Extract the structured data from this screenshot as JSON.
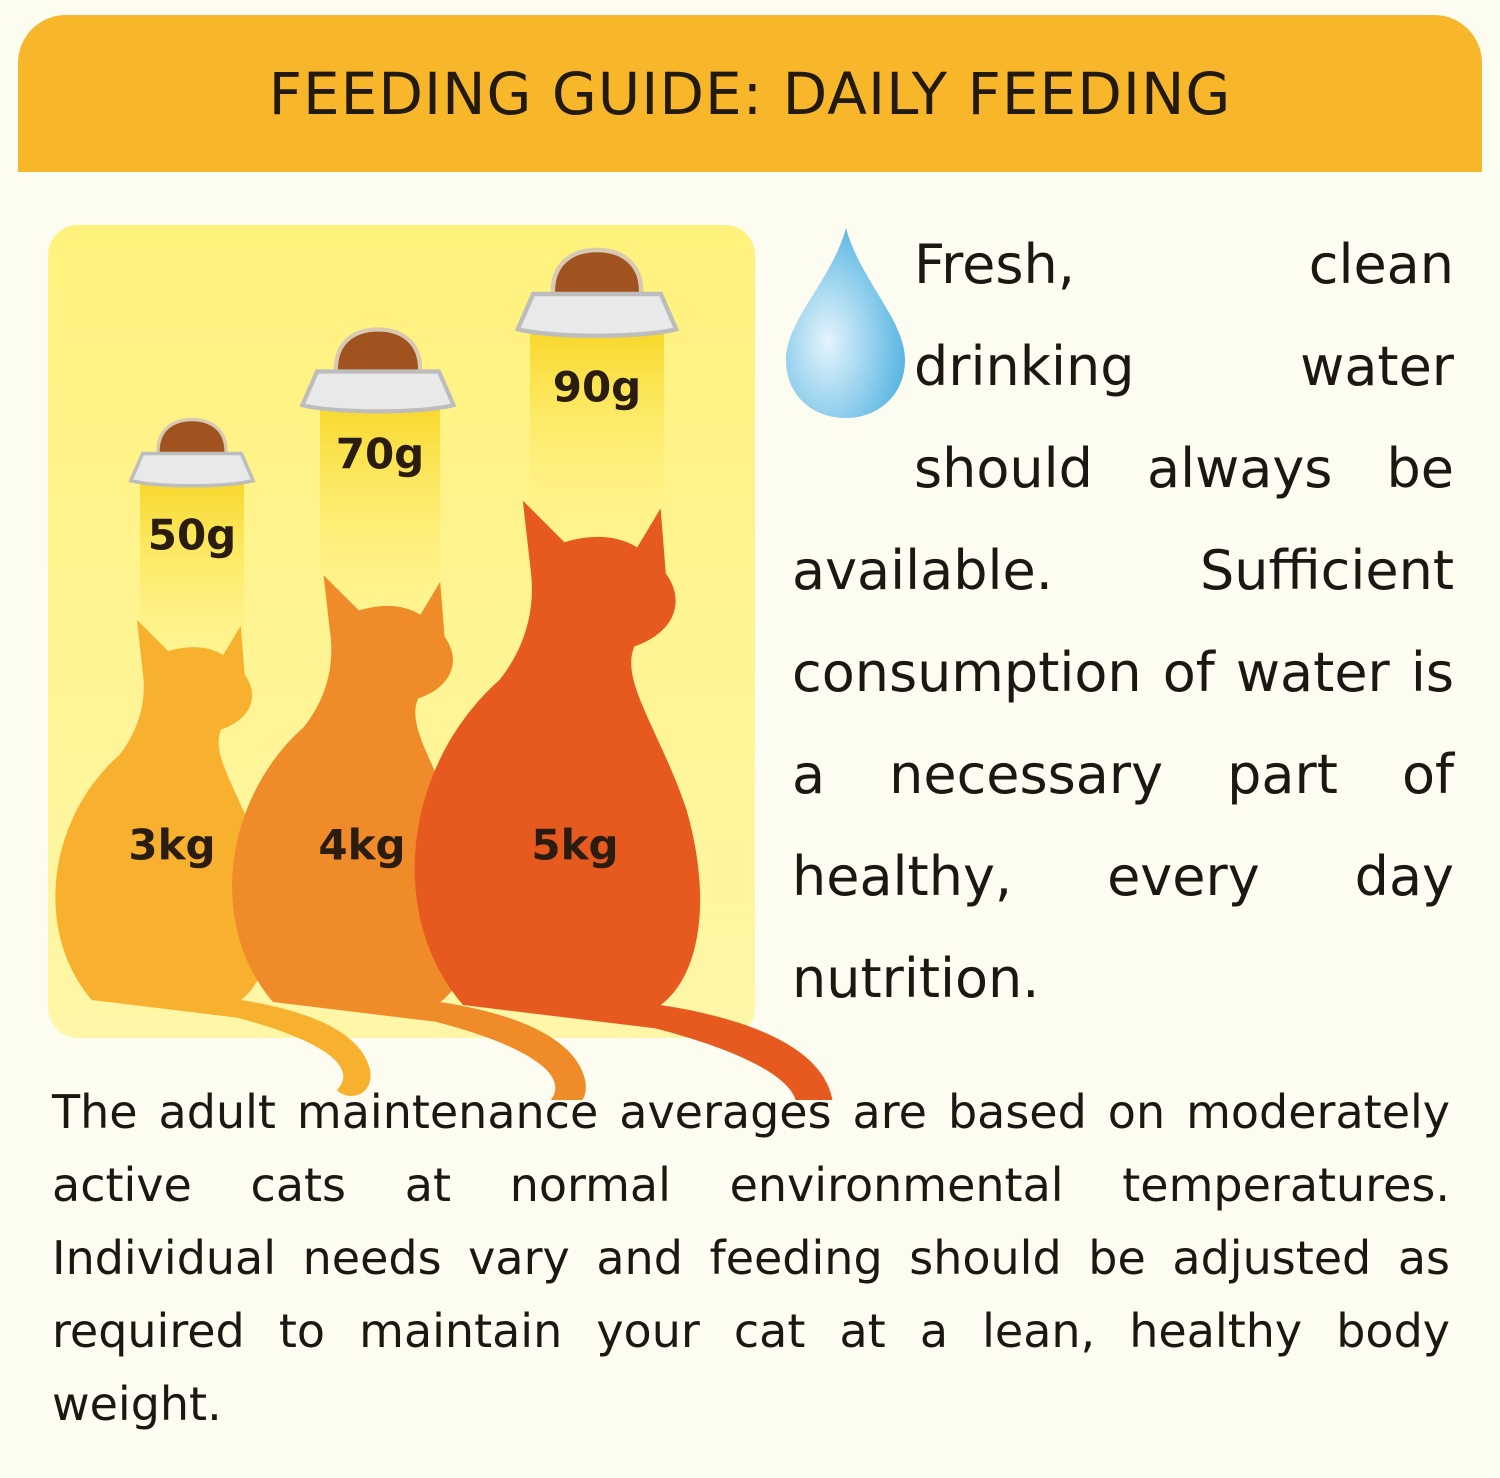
{
  "header": {
    "title": "FEEDING GUIDE: DAILY FEEDING"
  },
  "feeding": {
    "items": [
      {
        "weight": "3kg",
        "amount": "50g"
      },
      {
        "weight": "4kg",
        "amount": "70g"
      },
      {
        "weight": "5kg",
        "amount": "90g"
      }
    ]
  },
  "water": {
    "text": "Fresh, clean drinking water should always be available. Sufficient consumption of water is a necessary part of healthy, every day nutrition."
  },
  "note": {
    "text": "The adult maintenance averages are based on moderately active cats at normal environmental temperatures. Individual needs vary and feeding should be adjusted as required to maintain your cat at a lean, healthy body weight."
  }
}
